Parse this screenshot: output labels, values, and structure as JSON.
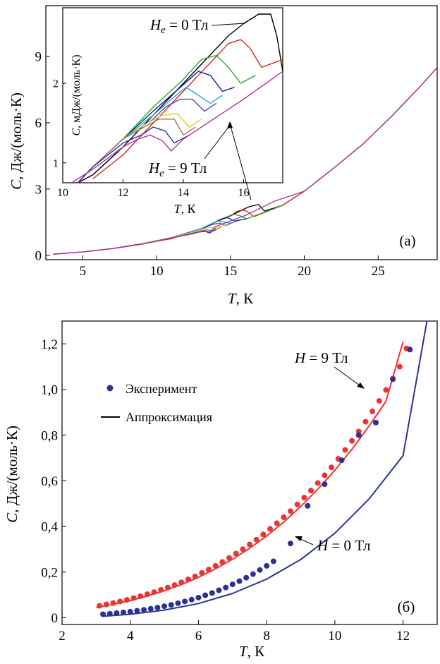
{
  "chart_data": [
    {
      "type": "line",
      "panel_label": "(a)",
      "xlabel_italic": "T",
      "xlabel_rest": ", К",
      "ylabel_italic": "C",
      "ylabel_rest": ", Дж/(моль·К)",
      "xlim": [
        2.5,
        29
      ],
      "ylim": [
        -0.2,
        11.3
      ],
      "xticks": [
        5,
        10,
        15,
        20,
        25
      ],
      "yticks": [
        0,
        3,
        6,
        9
      ],
      "series": [
        {
          "color": "#000000",
          "x": [
            3,
            5,
            7,
            9,
            11,
            13,
            14,
            15,
            15.5,
            16,
            16.3,
            16.6,
            16.9,
            17.3,
            18.5,
            20,
            22,
            24,
            26,
            28,
            29
          ],
          "y": [
            0.05,
            0.15,
            0.3,
            0.52,
            0.8,
            1.2,
            1.5,
            1.78,
            1.95,
            2.12,
            2.2,
            2.25,
            2.3,
            2.0,
            2.25,
            2.9,
            3.95,
            5.05,
            6.35,
            7.75,
            8.5
          ]
        },
        {
          "color": "#dd2222",
          "x": [
            3,
            5,
            7,
            9,
            11,
            13,
            14,
            15,
            15.5,
            15.8,
            16.1,
            16.6,
            18.5,
            20
          ],
          "y": [
            0.05,
            0.15,
            0.3,
            0.52,
            0.75,
            1.15,
            1.5,
            1.8,
            2.0,
            2.05,
            2.0,
            1.75,
            2.25,
            2.9
          ]
        },
        {
          "color": "#22aa33",
          "x": [
            9,
            11,
            13,
            14,
            14.6,
            15.2,
            15.6,
            16.1,
            18.5
          ],
          "y": [
            0.52,
            0.8,
            1.2,
            1.5,
            1.7,
            1.85,
            1.8,
            1.65,
            2.25
          ]
        },
        {
          "color": "#1a1a99",
          "x": [
            9,
            11,
            13,
            13.8,
            14.4,
            14.8,
            15.3,
            16.1
          ],
          "y": [
            0.52,
            0.8,
            1.2,
            1.45,
            1.65,
            1.7,
            1.55,
            1.65
          ]
        },
        {
          "color": "#22aacc",
          "x": [
            9,
            11,
            13,
            13.6,
            14.2,
            14.6,
            15.0,
            15.5
          ],
          "y": [
            0.52,
            0.8,
            1.2,
            1.4,
            1.55,
            1.5,
            1.45,
            1.55
          ]
        },
        {
          "color": "#5544bb",
          "x": [
            9,
            11,
            13,
            13.4,
            13.8,
            14.3,
            14.7,
            15.2
          ],
          "y": [
            0.52,
            0.8,
            1.15,
            1.3,
            1.4,
            1.45,
            1.35,
            1.5
          ]
        },
        {
          "color": "#ddcc22",
          "x": [
            9,
            11,
            12.5,
            13.2,
            13.6,
            14.0,
            14.4,
            14.8
          ],
          "y": [
            0.52,
            0.8,
            1.05,
            1.2,
            1.28,
            1.22,
            1.3,
            1.4
          ]
        },
        {
          "color": "#997755",
          "x": [
            9,
            11,
            12.5,
            13.0,
            13.4,
            13.9,
            14.4
          ],
          "y": [
            0.5,
            0.78,
            1.0,
            1.1,
            1.15,
            1.1,
            1.3
          ]
        },
        {
          "color": "#2233aa",
          "x": [
            9,
            11,
            12.5,
            12.9,
            13.3,
            13.6,
            14.0
          ],
          "y": [
            0.5,
            0.78,
            1.0,
            1.05,
            1.08,
            1.0,
            1.2
          ]
        },
        {
          "color": "#aa3399",
          "x": [
            3,
            5,
            7,
            9,
            11,
            12.5,
            13.2,
            13.6,
            14,
            15,
            16,
            18,
            20,
            22,
            24,
            26,
            28,
            29
          ],
          "y": [
            0.05,
            0.15,
            0.3,
            0.5,
            0.78,
            0.98,
            1.12,
            1.05,
            1.3,
            1.55,
            1.8,
            2.45,
            2.9,
            3.95,
            5.05,
            6.35,
            7.75,
            8.5
          ]
        }
      ],
      "inset": {
        "xlabel_italic": "T",
        "xlabel_rest": ", К",
        "ylabel_italic": "C",
        "ylabel_rest": ", мДж/(моль·К)",
        "xlim": [
          10,
          17.3
        ],
        "ylim": [
          0.75,
          2.95
        ],
        "xticks": [
          10,
          12,
          14,
          16
        ],
        "yticks": [
          1,
          2
        ],
        "annotation_top": {
          "i": "H",
          "sub": "e",
          "rest": " = 0 Тл"
        },
        "annotation_bottom": {
          "i": "H",
          "sub": "e",
          "rest": " = 9 Тл"
        },
        "series": [
          {
            "color": "#000000",
            "x": [
              10.5,
              11,
              12,
              13,
              14,
              15,
              15.5,
              16,
              16.5,
              16.9,
              17.1,
              17.3
            ],
            "y": [
              0.75,
              0.85,
              1.2,
              1.6,
              2.0,
              2.4,
              2.6,
              2.75,
              2.87,
              2.87,
              2.6,
              2.15
            ]
          },
          {
            "color": "#dd2222",
            "x": [
              11,
              12,
              13,
              14,
              15,
              15.5,
              15.9,
              16.2,
              16.6,
              17.3
            ],
            "y": [
              0.8,
              1.1,
              1.5,
              1.9,
              2.3,
              2.5,
              2.55,
              2.45,
              2.2,
              2.3
            ]
          },
          {
            "color": "#22aa33",
            "x": [
              10.5,
              11,
              12,
              13,
              14,
              14.6,
              15.1,
              15.5,
              15.9,
              16.4
            ],
            "y": [
              0.75,
              0.95,
              1.3,
              1.7,
              2.05,
              2.3,
              2.35,
              2.2,
              2.0,
              2.1
            ]
          },
          {
            "color": "#1a1a99",
            "x": [
              10.5,
              11,
              12,
              13,
              13.9,
              14.5,
              14.9,
              15.3,
              15.7
            ],
            "y": [
              0.75,
              0.95,
              1.3,
              1.65,
              1.95,
              2.15,
              2.1,
              1.9,
              1.95
            ]
          },
          {
            "color": "#22aacc",
            "x": [
              10.5,
              11,
              12,
              13,
              13.6,
              14.1,
              14.5,
              14.9,
              15.3
            ],
            "y": [
              0.75,
              0.95,
              1.3,
              1.6,
              1.8,
              1.95,
              1.85,
              1.75,
              1.85
            ]
          },
          {
            "color": "#5544bb",
            "x": [
              10.5,
              11,
              12,
              13,
              13.4,
              13.9,
              14.3,
              14.7,
              15.1
            ],
            "y": [
              0.75,
              0.95,
              1.3,
              1.55,
              1.7,
              1.8,
              1.8,
              1.65,
              1.75
            ]
          },
          {
            "color": "#ddcc22",
            "x": [
              10.5,
              11,
              12,
              12.8,
              13.3,
              13.8,
              14.2,
              14.6
            ],
            "y": [
              0.75,
              0.95,
              1.3,
              1.5,
              1.6,
              1.62,
              1.45,
              1.55
            ]
          },
          {
            "color": "#997755",
            "x": [
              10.5,
              11,
              12,
              12.7,
              13.2,
              13.7,
              14.0,
              14.4
            ],
            "y": [
              0.75,
              0.95,
              1.3,
              1.45,
              1.55,
              1.55,
              1.35,
              1.45
            ]
          },
          {
            "color": "#2233aa",
            "x": [
              10.5,
              11,
              12,
              12.6,
              13.0,
              13.4,
              13.7,
              14.2
            ],
            "y": [
              0.75,
              0.95,
              1.25,
              1.35,
              1.45,
              1.4,
              1.25,
              1.35
            ]
          },
          {
            "color": "#aa3399",
            "x": [
              10.3,
              11,
              12,
              12.5,
              12.9,
              13.3,
              13.6,
              14,
              15,
              16,
              17.3
            ],
            "y": [
              0.75,
              0.92,
              1.2,
              1.3,
              1.35,
              1.28,
              1.15,
              1.3,
              1.55,
              1.8,
              2.15
            ]
          }
        ]
      }
    },
    {
      "type": "scatter",
      "panel_label": "(б)",
      "xlabel_italic": "T",
      "xlabel_rest": ", К",
      "ylabel_italic": "C",
      "ylabel_rest": ", Дж/(моль·К)",
      "xlim": [
        2,
        13
      ],
      "ylim": [
        -0.03,
        1.3
      ],
      "xticks": [
        2,
        4,
        6,
        8,
        10,
        12
      ],
      "xtick_labels": [
        "2",
        "4",
        "6",
        "8",
        "10",
        "12"
      ],
      "yticks": [
        0,
        0.2,
        0.4,
        0.6,
        0.8,
        1.0,
        1.2
      ],
      "ytick_labels": [
        "0",
        "0,2",
        "0,4",
        "0,6",
        "0,8",
        "1,0",
        "1,2"
      ],
      "legend": [
        {
          "kind": "dot",
          "label": "Эксперимент"
        },
        {
          "kind": "line",
          "label": "Аппроксимация"
        }
      ],
      "annotation_h9": {
        "i": "H",
        "rest": " = 9 Тл"
      },
      "annotation_h0": {
        "i": "H",
        "rest": " = 0 Тл"
      },
      "series": [
        {
          "color": "#ee3333",
          "mode": "markers",
          "x": [
            3.1,
            3.3,
            3.5,
            3.7,
            3.9,
            4.1,
            4.3,
            4.5,
            4.7,
            4.9,
            5.1,
            5.3,
            5.5,
            5.7,
            5.9,
            6.1,
            6.3,
            6.5,
            6.7,
            6.9,
            7.1,
            7.3,
            7.5,
            7.7,
            7.9,
            8.1,
            8.3,
            8.5,
            8.7,
            8.9,
            9.1,
            9.3,
            9.5,
            9.7,
            9.9,
            10.1,
            10.3,
            10.5,
            10.7,
            10.9,
            11.1,
            11.3,
            11.5,
            11.7,
            11.9,
            12.1
          ],
          "y": [
            0.052,
            0.058,
            0.064,
            0.071,
            0.078,
            0.086,
            0.094,
            0.103,
            0.112,
            0.122,
            0.132,
            0.143,
            0.155,
            0.168,
            0.181,
            0.196,
            0.211,
            0.227,
            0.244,
            0.262,
            0.281,
            0.3,
            0.321,
            0.342,
            0.365,
            0.389,
            0.414,
            0.44,
            0.467,
            0.496,
            0.526,
            0.557,
            0.59,
            0.624,
            0.659,
            0.696,
            0.735,
            0.775,
            0.816,
            0.859,
            0.904,
            0.95,
            0.998,
            1.048,
            1.1,
            1.18
          ]
        },
        {
          "color": "#ee3333",
          "mode": "line",
          "x": [
            3.0,
            3.5,
            4.0,
            4.5,
            5.0,
            5.5,
            6.0,
            6.5,
            7.0,
            7.5,
            8.0,
            8.5,
            9.0,
            9.5,
            10.0,
            10.5,
            11.0,
            11.5,
            12.0
          ],
          "y": [
            0.045,
            0.058,
            0.075,
            0.095,
            0.118,
            0.145,
            0.177,
            0.214,
            0.256,
            0.304,
            0.358,
            0.419,
            0.487,
            0.563,
            0.646,
            0.738,
            0.839,
            0.949,
            1.21
          ]
        },
        {
          "color": "#2a3394",
          "mode": "markers",
          "x": [
            3.2,
            3.4,
            3.6,
            3.8,
            4.0,
            4.2,
            4.4,
            4.6,
            4.8,
            5.0,
            5.2,
            5.4,
            5.6,
            5.8,
            6.0,
            6.2,
            6.4,
            6.6,
            6.8,
            7.0,
            7.2,
            7.4,
            7.6,
            7.8,
            8.0,
            8.2,
            8.7,
            9.2,
            9.7,
            10.2,
            10.7,
            11.2,
            11.7,
            12.2
          ],
          "y": [
            0.015,
            0.017,
            0.02,
            0.023,
            0.026,
            0.03,
            0.034,
            0.039,
            0.044,
            0.05,
            0.056,
            0.063,
            0.071,
            0.079,
            0.088,
            0.098,
            0.108,
            0.12,
            0.132,
            0.146,
            0.16,
            0.175,
            0.191,
            0.209,
            0.227,
            0.247,
            0.325,
            0.49,
            0.585,
            0.69,
            0.8,
            0.855,
            1.045,
            1.175
          ]
        },
        {
          "color": "#2a3394",
          "mode": "line",
          "x": [
            3.2,
            4.0,
            5.0,
            6.0,
            7.0,
            8.0,
            9.0,
            10.0,
            11.0,
            12.0,
            12.7
          ],
          "y": [
            0.006,
            0.015,
            0.033,
            0.062,
            0.106,
            0.169,
            0.255,
            0.37,
            0.52,
            0.71,
            1.3
          ]
        }
      ]
    }
  ]
}
